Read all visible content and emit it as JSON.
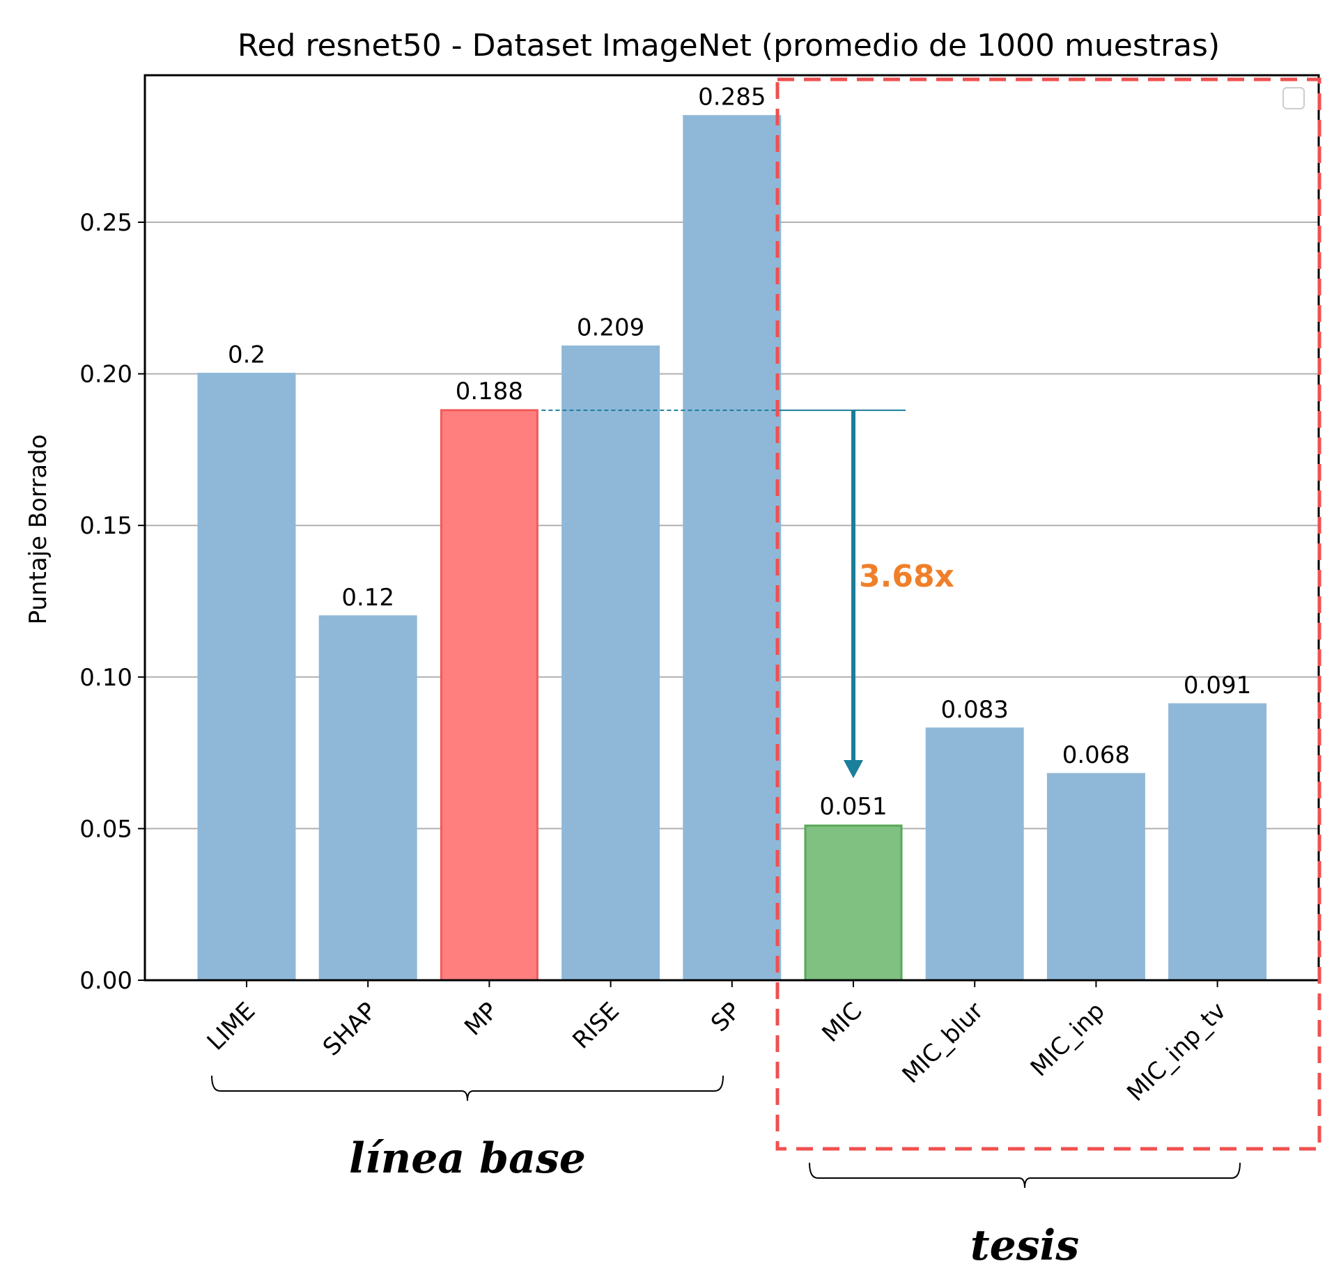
{
  "chart_data": {
    "type": "bar",
    "title": "Red resnet50 - Dataset ImageNet (promedio de 1000 muestras)",
    "xlabel": "",
    "ylabel": "Puntaje Borrado",
    "ylim": [
      0,
      0.3
    ],
    "yticks": [
      "0.00",
      "0.05",
      "0.10",
      "0.15",
      "0.20",
      "0.25"
    ],
    "grid": "horizontal",
    "categories": [
      "LIME",
      "SHAP",
      "MP",
      "RISE",
      "SP",
      "MIC",
      "MIC_blur",
      "MIC_inp",
      "MIC_inp_tv"
    ],
    "values": [
      0.2,
      0.12,
      0.188,
      0.209,
      0.285,
      0.051,
      0.083,
      0.068,
      0.091
    ],
    "value_labels": [
      "0.2",
      "0.12",
      "0.188",
      "0.209",
      "0.285",
      "0.051",
      "0.083",
      "0.068",
      "0.091"
    ],
    "bar_colors": [
      "#8fb8d8",
      "#8fb8d8",
      "#ff7f7f",
      "#8fb8d8",
      "#8fb8d8",
      "#80c080",
      "#8fb8d8",
      "#8fb8d8",
      "#8fb8d8"
    ],
    "bar_edge_colors": [
      "#8fb8d8",
      "#8fb8d8",
      "#f25a5a",
      "#8fb8d8",
      "#8fb8d8",
      "#5aa85a",
      "#8fb8d8",
      "#8fb8d8",
      "#8fb8d8"
    ],
    "annotation": {
      "text": "3.68x",
      "from_value": 0.188,
      "to_value": 0.051,
      "arrow_color": "#1a7f9a",
      "text_color": "#f07f2a"
    },
    "groups": [
      {
        "label": "línea base",
        "categories": [
          "LIME",
          "SHAP",
          "MP",
          "RISE",
          "SP"
        ]
      },
      {
        "label": "tesis",
        "categories": [
          "MIC",
          "MIC_blur",
          "MIC_inp",
          "MIC_inp_tv"
        ]
      }
    ],
    "highlight_box_color": "#f05050",
    "legend": "top-right (empty)"
  }
}
